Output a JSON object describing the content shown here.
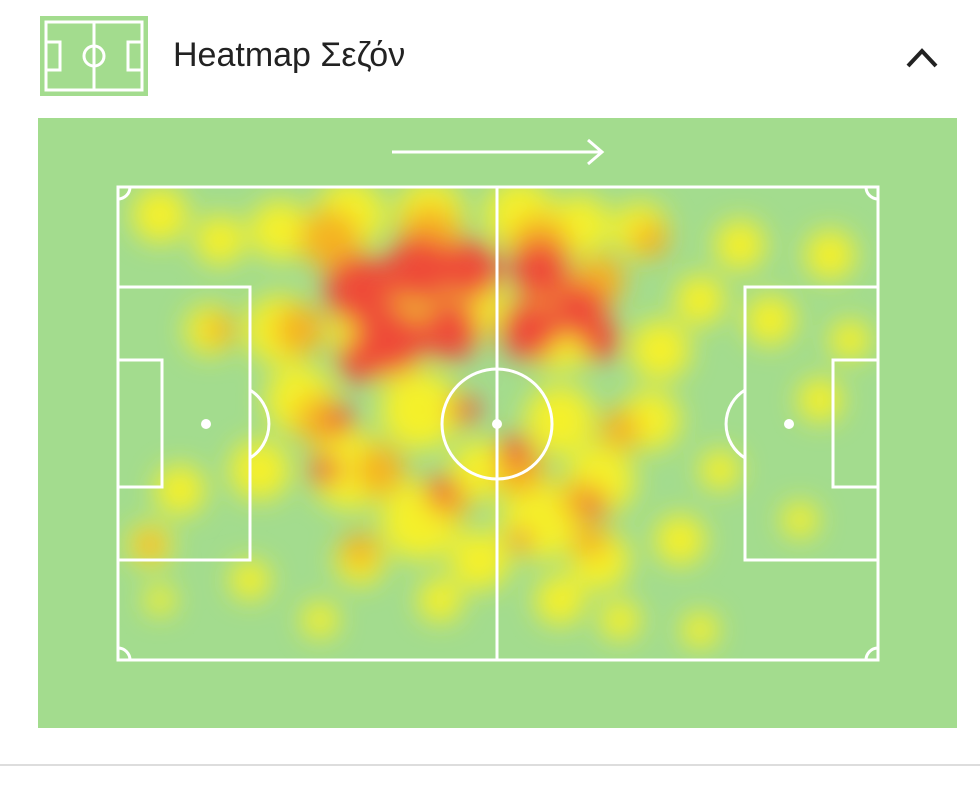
{
  "header": {
    "title": "Heatmap Σεζόν"
  }
}
